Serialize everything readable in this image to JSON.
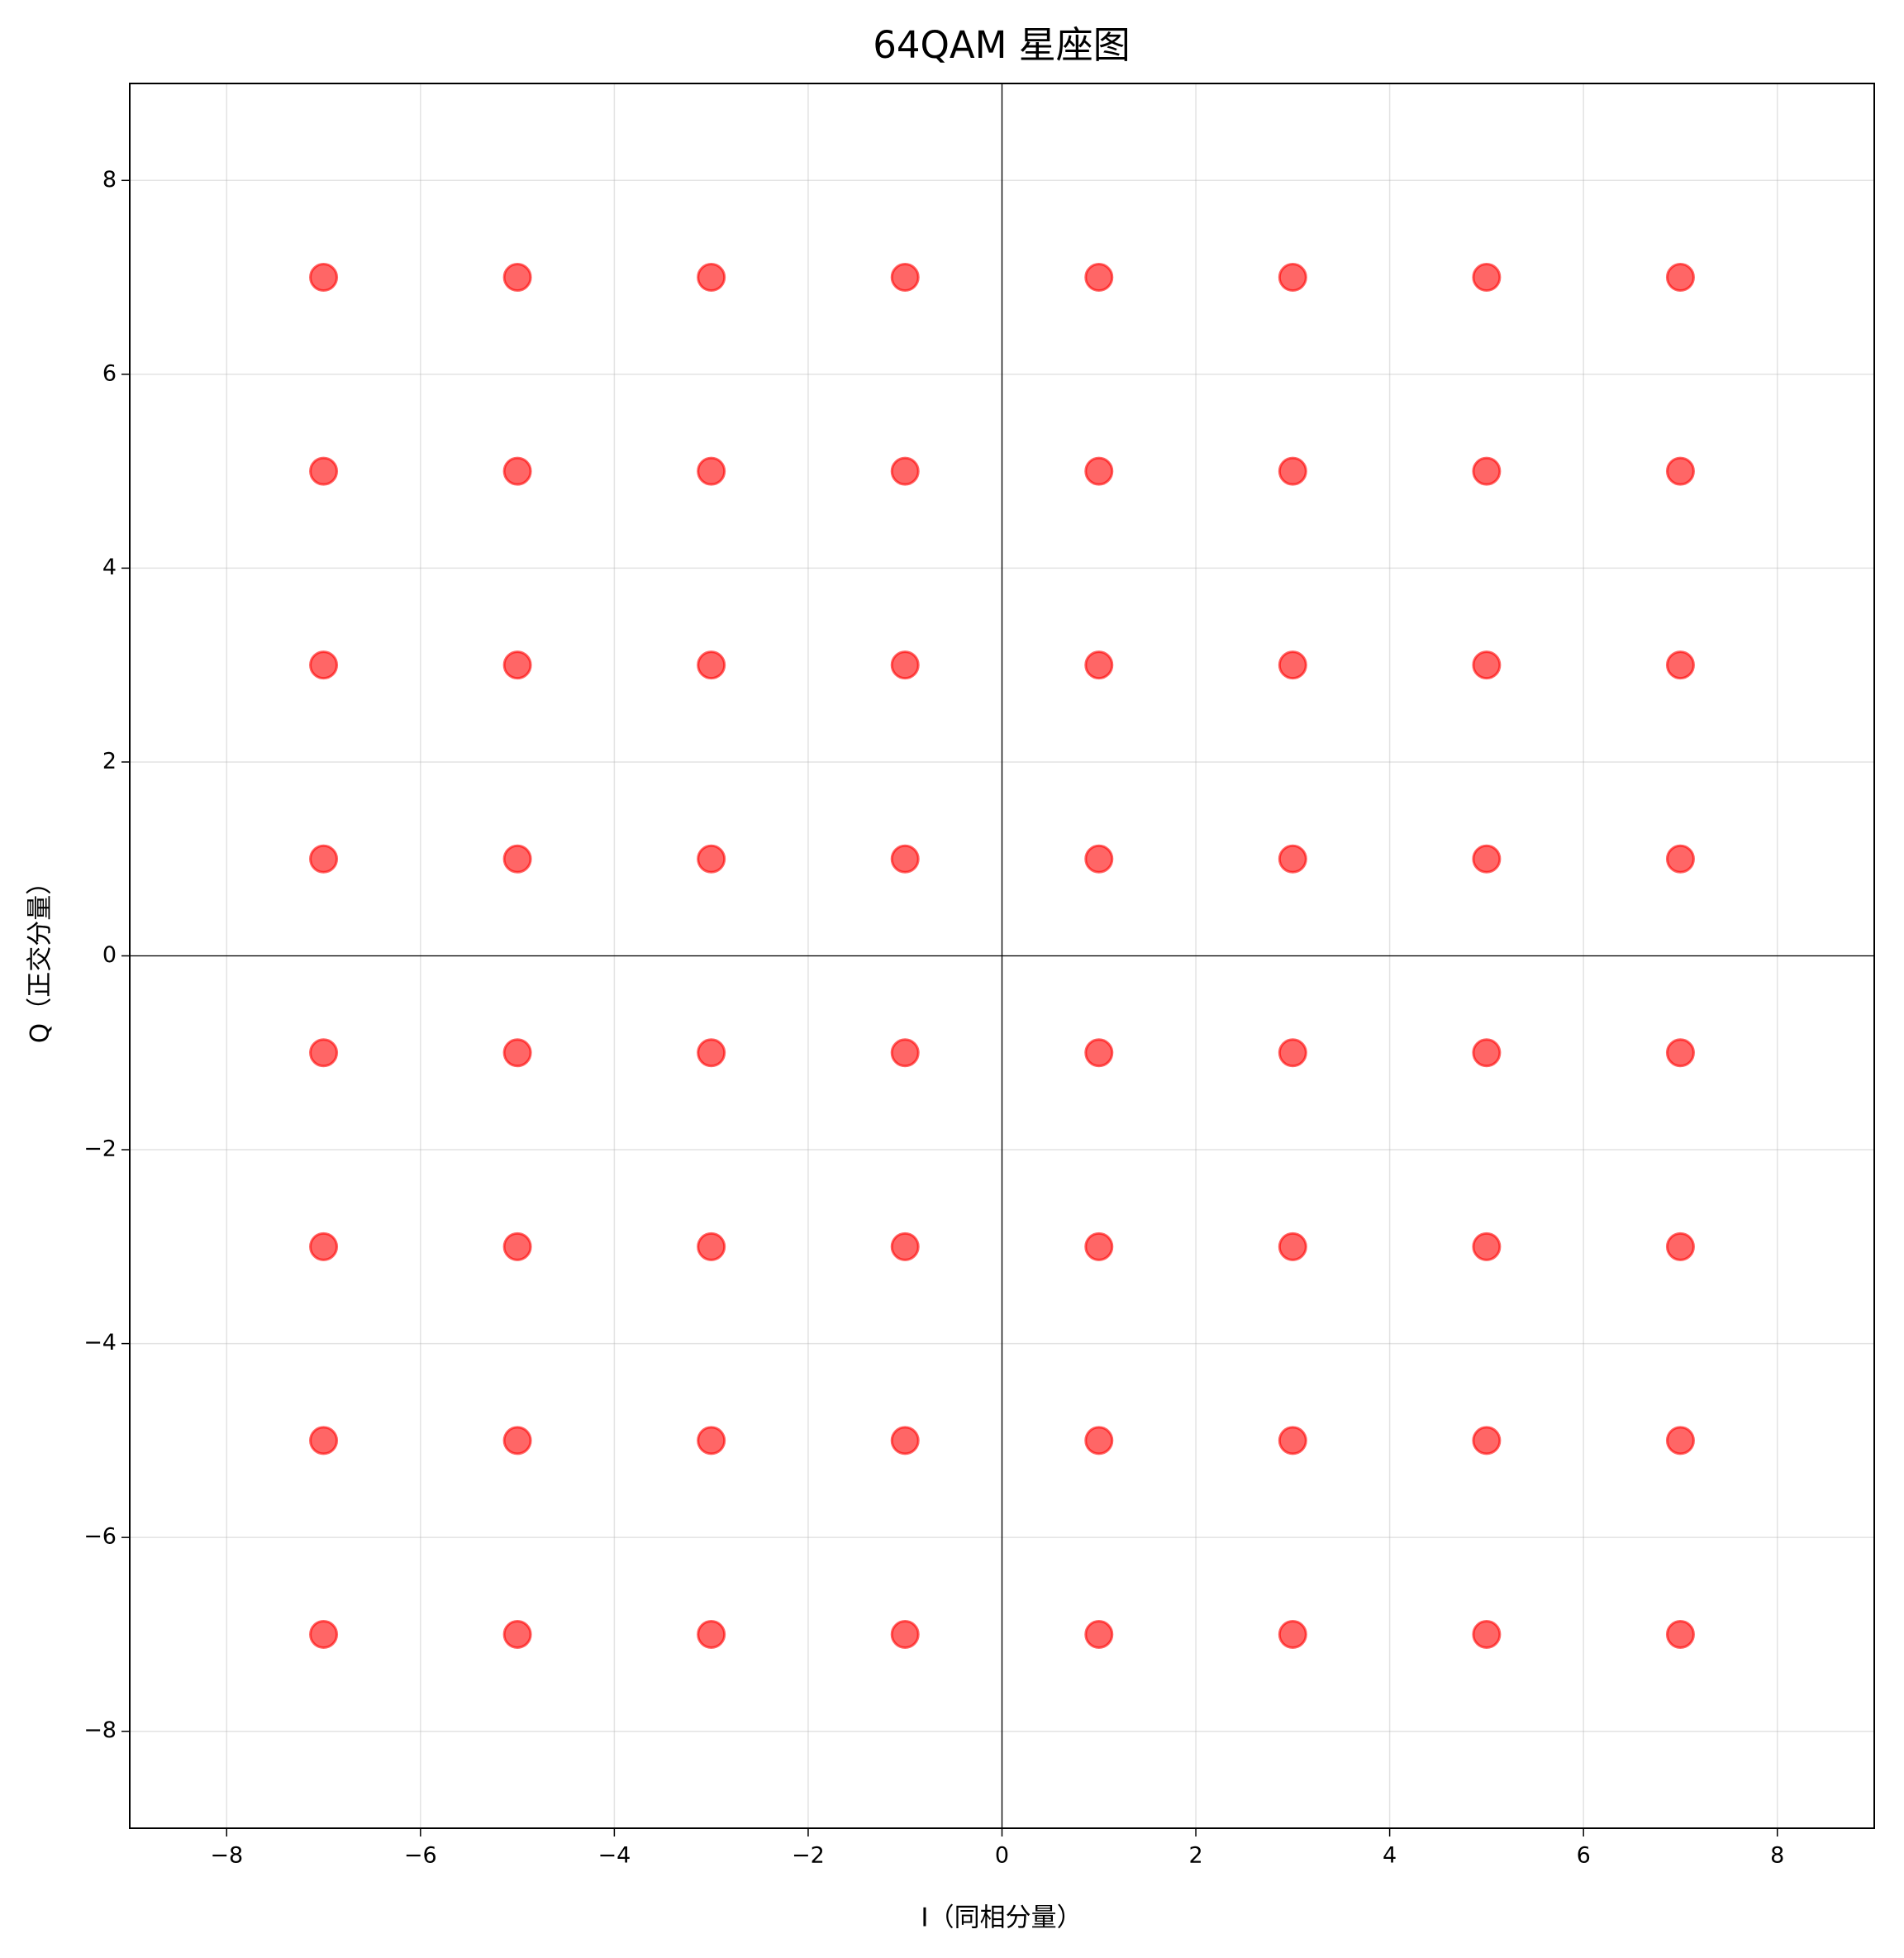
{
  "chart_data": {
    "type": "scatter",
    "title": "64QAM 星座图",
    "xlabel": "I（同相分量）",
    "ylabel": "Q（正交分量）",
    "x": [
      -7,
      -5,
      -3,
      -1,
      1,
      3,
      5,
      7,
      -7,
      -5,
      -3,
      -1,
      1,
      3,
      5,
      7,
      -7,
      -5,
      -3,
      -1,
      1,
      3,
      5,
      7,
      -7,
      -5,
      -3,
      -1,
      1,
      3,
      5,
      7,
      -7,
      -5,
      -3,
      -1,
      1,
      3,
      5,
      7,
      -7,
      -5,
      -3,
      -1,
      1,
      3,
      5,
      7,
      -7,
      -5,
      -3,
      -1,
      1,
      3,
      5,
      7,
      -7,
      -5,
      -3,
      -1,
      1,
      3,
      5,
      7
    ],
    "y": [
      7,
      7,
      7,
      7,
      7,
      7,
      7,
      7,
      5,
      5,
      5,
      5,
      5,
      5,
      5,
      5,
      3,
      3,
      3,
      3,
      3,
      3,
      3,
      3,
      1,
      1,
      1,
      1,
      1,
      1,
      1,
      1,
      -1,
      -1,
      -1,
      -1,
      -1,
      -1,
      -1,
      -1,
      -3,
      -3,
      -3,
      -3,
      -3,
      -3,
      -3,
      -3,
      -5,
      -5,
      -5,
      -5,
      -5,
      -5,
      -5,
      -5,
      -7,
      -7,
      -7,
      -7,
      -7,
      -7,
      -7,
      -7
    ],
    "color": "#ff0000",
    "xlim": [
      -9,
      9
    ],
    "ylim": [
      -9,
      9
    ],
    "xticks": [
      {
        "value": -8,
        "label": "−8"
      },
      {
        "value": -6,
        "label": "−6"
      },
      {
        "value": -4,
        "label": "−4"
      },
      {
        "value": -2,
        "label": "−2"
      },
      0,
      2,
      4,
      6,
      8
    ],
    "yticks": [
      {
        "value": -8,
        "label": "−8"
      },
      {
        "value": -6,
        "label": "−6"
      },
      {
        "value": -4,
        "label": "−4"
      },
      {
        "value": -2,
        "label": "−2"
      },
      0,
      2,
      4,
      6,
      8
    ],
    "grid": true
  }
}
